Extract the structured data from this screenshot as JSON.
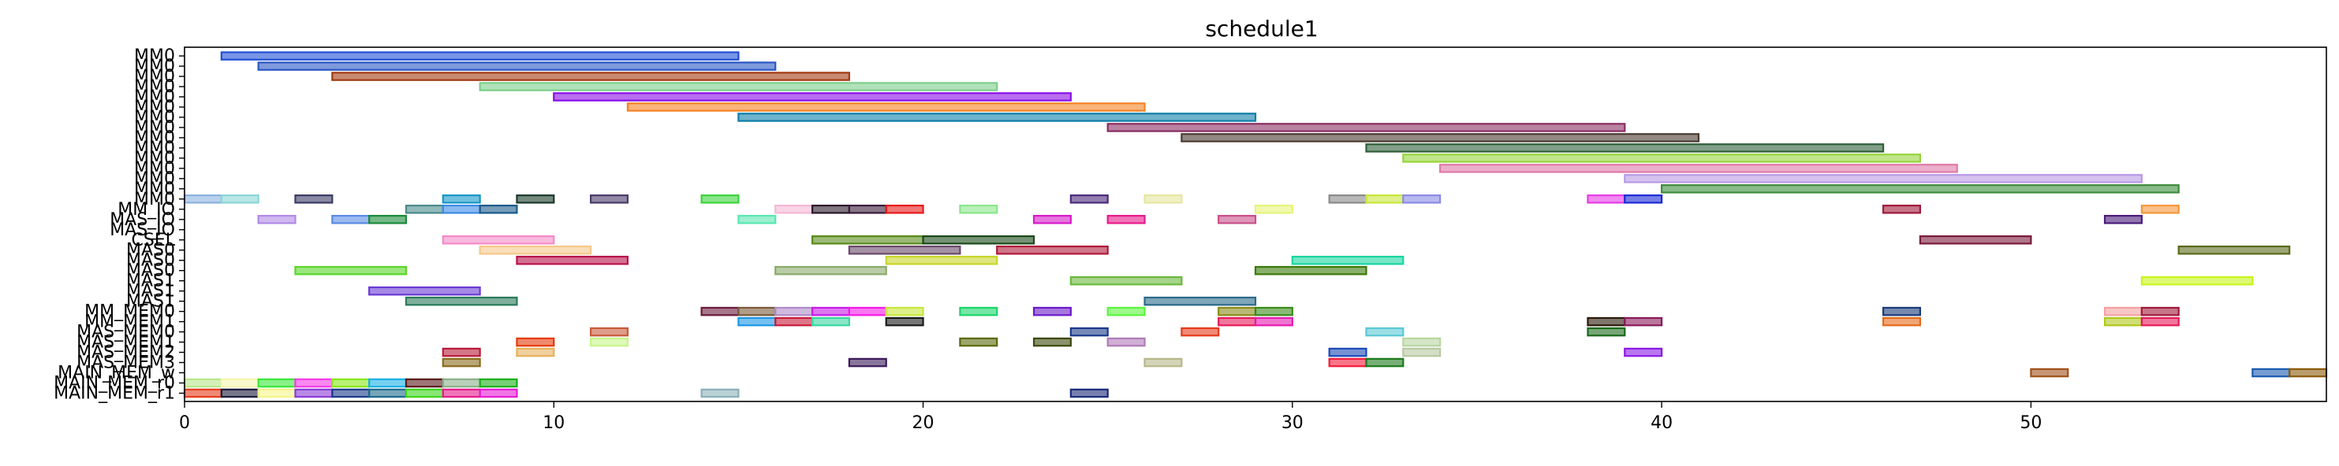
{
  "chart_data": {
    "type": "gantt",
    "title": "schedule1",
    "xlabel": "",
    "ylabel": "",
    "xlim": [
      0,
      58
    ],
    "xticks": [
      0,
      10,
      20,
      30,
      40,
      50
    ],
    "grid": false,
    "rows": [
      "MM0",
      "MM0",
      "MM0",
      "MM0",
      "MM0",
      "MM0",
      "MM0",
      "MM0",
      "MM0",
      "MM0",
      "MM0",
      "MM0",
      "MM0",
      "MM0",
      "MM0",
      "MM_IO",
      "MAS_IO",
      "MAS_IO",
      "CSEL",
      "MAS0",
      "MAS0",
      "MAS0",
      "MAS1",
      "MAS1",
      "MAS1",
      "MM_MEM0",
      "MM_MEM1",
      "MAS_MEM0",
      "MAS_MEM1",
      "MAS_MEM2",
      "MAS_MEM3",
      "MAIN_MEM_w",
      "MAIN_MEM_r0",
      "MAIN_MEM_r1"
    ],
    "tasks": [
      {
        "row": 0,
        "start": 1,
        "end": 15,
        "color": "#1f4fd6"
      },
      {
        "row": 1,
        "start": 2,
        "end": 16,
        "color": "#2a57c4"
      },
      {
        "row": 2,
        "start": 4,
        "end": 18,
        "color": "#a33a12"
      },
      {
        "row": 3,
        "start": 8,
        "end": 22,
        "color": "#7ccf8a"
      },
      {
        "row": 4,
        "start": 10,
        "end": 24,
        "color": "#8a0fe6"
      },
      {
        "row": 5,
        "start": 12,
        "end": 26,
        "color": "#f58225"
      },
      {
        "row": 6,
        "start": 15,
        "end": 29,
        "color": "#0f7ea8"
      },
      {
        "row": 7,
        "start": 25,
        "end": 39,
        "color": "#8a2e63"
      },
      {
        "row": 8,
        "start": 27,
        "end": 41,
        "color": "#4a3a30"
      },
      {
        "row": 9,
        "start": 32,
        "end": 46,
        "color": "#2f5f3a"
      },
      {
        "row": 10,
        "start": 33,
        "end": 47,
        "color": "#96d43c"
      },
      {
        "row": 11,
        "start": 34,
        "end": 48,
        "color": "#e07aa8"
      },
      {
        "row": 12,
        "start": 39,
        "end": 53,
        "color": "#b99ae6"
      },
      {
        "row": 13,
        "start": 40,
        "end": 54,
        "color": "#3c8c3c"
      },
      {
        "row": 14,
        "start": 0,
        "end": 1,
        "color": "#8ab0e0"
      },
      {
        "row": 14,
        "start": 1,
        "end": 2,
        "color": "#8ad6d6"
      },
      {
        "row": 14,
        "start": 3,
        "end": 4,
        "color": "#3a3a66"
      },
      {
        "row": 14,
        "start": 7,
        "end": 8,
        "color": "#1496c8"
      },
      {
        "row": 14,
        "start": 9,
        "end": 10,
        "color": "#1a3a2a"
      },
      {
        "row": 14,
        "start": 11,
        "end": 12,
        "color": "#4a3a6a"
      },
      {
        "row": 14,
        "start": 14,
        "end": 15,
        "color": "#3cd43c"
      },
      {
        "row": 14,
        "start": 24,
        "end": 25,
        "color": "#4a2a7a"
      },
      {
        "row": 14,
        "start": 26,
        "end": 27,
        "color": "#e6e6a0"
      },
      {
        "row": 14,
        "start": 31,
        "end": 32,
        "color": "#8a8a8a"
      },
      {
        "row": 14,
        "start": 32,
        "end": 33,
        "color": "#c8e63c"
      },
      {
        "row": 14,
        "start": 33,
        "end": 34,
        "color": "#8a8ae6"
      },
      {
        "row": 14,
        "start": 38,
        "end": 39,
        "color": "#e63ce6"
      },
      {
        "row": 14,
        "start": 39,
        "end": 40,
        "color": "#1a2ad6"
      },
      {
        "row": 15,
        "start": 6,
        "end": 7,
        "color": "#4a8a8a"
      },
      {
        "row": 15,
        "start": 7,
        "end": 8,
        "color": "#3c8ae6"
      },
      {
        "row": 15,
        "start": 8,
        "end": 9,
        "color": "#1a5a8a"
      },
      {
        "row": 15,
        "start": 16,
        "end": 17,
        "color": "#f5b8d6"
      },
      {
        "row": 15,
        "start": 17,
        "end": 18,
        "color": "#2a1a2a"
      },
      {
        "row": 15,
        "start": 18,
        "end": 19,
        "color": "#3a1a3a"
      },
      {
        "row": 15,
        "start": 19,
        "end": 20,
        "color": "#e61a1a"
      },
      {
        "row": 15,
        "start": 21,
        "end": 22,
        "color": "#8ae68a"
      },
      {
        "row": 15,
        "start": 29,
        "end": 30,
        "color": "#e6f57a"
      },
      {
        "row": 15,
        "start": 46,
        "end": 47,
        "color": "#a01a3a"
      },
      {
        "row": 15,
        "start": 53,
        "end": 54,
        "color": "#f5963c"
      },
      {
        "row": 16,
        "start": 2,
        "end": 3,
        "color": "#b08ae6"
      },
      {
        "row": 16,
        "start": 4,
        "end": 5,
        "color": "#5a8ae6"
      },
      {
        "row": 16,
        "start": 5,
        "end": 6,
        "color": "#1a8a3a"
      },
      {
        "row": 16,
        "start": 15,
        "end": 16,
        "color": "#5ae6b0"
      },
      {
        "row": 16,
        "start": 23,
        "end": 24,
        "color": "#d61ac8"
      },
      {
        "row": 16,
        "start": 25,
        "end": 26,
        "color": "#e61a8a"
      },
      {
        "row": 16,
        "start": 28,
        "end": 29,
        "color": "#c8508a"
      },
      {
        "row": 16,
        "start": 52,
        "end": 53,
        "color": "#4a1a7a"
      },
      {
        "row": 18,
        "start": 7,
        "end": 10,
        "color": "#f58ac8"
      },
      {
        "row": 18,
        "start": 17,
        "end": 20,
        "color": "#5a8a1a"
      },
      {
        "row": 18,
        "start": 20,
        "end": 23,
        "color": "#1a4a1a"
      },
      {
        "row": 18,
        "start": 47,
        "end": 50,
        "color": "#7a1a3a"
      },
      {
        "row": 19,
        "start": 8,
        "end": 11,
        "color": "#f5c88a"
      },
      {
        "row": 19,
        "start": 18,
        "end": 21,
        "color": "#6a4a6a"
      },
      {
        "row": 19,
        "start": 22,
        "end": 25,
        "color": "#b01a3a"
      },
      {
        "row": 19,
        "start": 54,
        "end": 57,
        "color": "#5a6a1a"
      },
      {
        "row": 20,
        "start": 9,
        "end": 12,
        "color": "#b8124a"
      },
      {
        "row": 20,
        "start": 19,
        "end": 22,
        "color": "#c8d62a"
      },
      {
        "row": 20,
        "start": 30,
        "end": 33,
        "color": "#1ad6a0"
      },
      {
        "row": 21,
        "start": 3,
        "end": 6,
        "color": "#5ad62a"
      },
      {
        "row": 21,
        "start": 16,
        "end": 19,
        "color": "#8aaa6a"
      },
      {
        "row": 21,
        "start": 29,
        "end": 32,
        "color": "#3a7a0a"
      },
      {
        "row": 22,
        "start": 24,
        "end": 27,
        "color": "#6ab83c"
      },
      {
        "row": 22,
        "start": 53,
        "end": 56,
        "color": "#c8f51a"
      },
      {
        "row": 23,
        "start": 5,
        "end": 8,
        "color": "#6a3ad6"
      },
      {
        "row": 24,
        "start": 6,
        "end": 9,
        "color": "#2a7a5a"
      },
      {
        "row": 24,
        "start": 26,
        "end": 29,
        "color": "#2a6a8a"
      },
      {
        "row": 25,
        "start": 14,
        "end": 15,
        "color": "#6a1a3a"
      },
      {
        "row": 25,
        "start": 15,
        "end": 16,
        "color": "#7a5a3a"
      },
      {
        "row": 25,
        "start": 16,
        "end": 17,
        "color": "#b08ac8"
      },
      {
        "row": 25,
        "start": 17,
        "end": 18,
        "color": "#c81ae6"
      },
      {
        "row": 25,
        "start": 18,
        "end": 19,
        "color": "#f51ae6"
      },
      {
        "row": 25,
        "start": 19,
        "end": 20,
        "color": "#c8e63c"
      },
      {
        "row": 25,
        "start": 21,
        "end": 22,
        "color": "#1ad66a"
      },
      {
        "row": 25,
        "start": 23,
        "end": 24,
        "color": "#6a1ac8"
      },
      {
        "row": 25,
        "start": 25,
        "end": 26,
        "color": "#5af53c"
      },
      {
        "row": 25,
        "start": 28,
        "end": 29,
        "color": "#8a8a1a"
      },
      {
        "row": 25,
        "start": 29,
        "end": 30,
        "color": "#3a8a1a"
      },
      {
        "row": 25,
        "start": 46,
        "end": 47,
        "color": "#1a3a7a"
      },
      {
        "row": 25,
        "start": 52,
        "end": 53,
        "color": "#f5a0a0"
      },
      {
        "row": 25,
        "start": 53,
        "end": 54,
        "color": "#a01a3a"
      },
      {
        "row": 26,
        "start": 15,
        "end": 16,
        "color": "#1a96e6"
      },
      {
        "row": 26,
        "start": 16,
        "end": 17,
        "color": "#c81a3a"
      },
      {
        "row": 26,
        "start": 17,
        "end": 18,
        "color": "#3ad6a0"
      },
      {
        "row": 26,
        "start": 19,
        "end": 20,
        "color": "#1a1a1a"
      },
      {
        "row": 26,
        "start": 28,
        "end": 29,
        "color": "#e61a5a"
      },
      {
        "row": 26,
        "start": 29,
        "end": 30,
        "color": "#e61ab0"
      },
      {
        "row": 26,
        "start": 38,
        "end": 39,
        "color": "#2a1a0a"
      },
      {
        "row": 26,
        "start": 39,
        "end": 40,
        "color": "#8a1a5a"
      },
      {
        "row": 26,
        "start": 46,
        "end": 47,
        "color": "#e66a1a"
      },
      {
        "row": 26,
        "start": 52,
        "end": 53,
        "color": "#b0c81a"
      },
      {
        "row": 26,
        "start": 53,
        "end": 54,
        "color": "#e61a5a"
      },
      {
        "row": 27,
        "start": 11,
        "end": 12,
        "color": "#c85a3a"
      },
      {
        "row": 27,
        "start": 24,
        "end": 25,
        "color": "#1a3a8a"
      },
      {
        "row": 27,
        "start": 27,
        "end": 28,
        "color": "#e63a1a"
      },
      {
        "row": 27,
        "start": 32,
        "end": 33,
        "color": "#5ac8d6"
      },
      {
        "row": 27,
        "start": 38,
        "end": 39,
        "color": "#1a6a1a"
      },
      {
        "row": 28,
        "start": 9,
        "end": 10,
        "color": "#e63a0a"
      },
      {
        "row": 28,
        "start": 11,
        "end": 12,
        "color": "#c8f58a"
      },
      {
        "row": 28,
        "start": 21,
        "end": 22,
        "color": "#5a6a0a"
      },
      {
        "row": 28,
        "start": 23,
        "end": 24,
        "color": "#3a4a0a"
      },
      {
        "row": 28,
        "start": 25,
        "end": 26,
        "color": "#b07ab8"
      },
      {
        "row": 28,
        "start": 33,
        "end": 34,
        "color": "#b8d6a0"
      },
      {
        "row": 29,
        "start": 7,
        "end": 8,
        "color": "#b81a3a"
      },
      {
        "row": 29,
        "start": 9,
        "end": 10,
        "color": "#e6b05a"
      },
      {
        "row": 29,
        "start": 31,
        "end": 32,
        "color": "#1a4ab8"
      },
      {
        "row": 29,
        "start": 33,
        "end": 34,
        "color": "#b8c8a0"
      },
      {
        "row": 29,
        "start": 39,
        "end": 40,
        "color": "#8a1ae6"
      },
      {
        "row": 30,
        "start": 7,
        "end": 8,
        "color": "#8a6a1a"
      },
      {
        "row": 30,
        "start": 18,
        "end": 19,
        "color": "#3a1a5a"
      },
      {
        "row": 30,
        "start": 26,
        "end": 27,
        "color": "#b8b88a"
      },
      {
        "row": 30,
        "start": 31,
        "end": 32,
        "color": "#f51a3a"
      },
      {
        "row": 30,
        "start": 32,
        "end": 33,
        "color": "#1a7a1a"
      },
      {
        "row": 31,
        "start": 50,
        "end": 51,
        "color": "#a0501a"
      },
      {
        "row": 31,
        "start": 56,
        "end": 57,
        "color": "#1a5ab0"
      },
      {
        "row": 31,
        "start": 57,
        "end": 58,
        "color": "#8a5a0a"
      },
      {
        "row": 32,
        "start": 0,
        "end": 1,
        "color": "#b8e68a"
      },
      {
        "row": 32,
        "start": 1,
        "end": 2,
        "color": "#f5f5b0"
      },
      {
        "row": 32,
        "start": 2,
        "end": 3,
        "color": "#3ae63a"
      },
      {
        "row": 32,
        "start": 3,
        "end": 4,
        "color": "#f53ae6"
      },
      {
        "row": 32,
        "start": 4,
        "end": 5,
        "color": "#8ae61a"
      },
      {
        "row": 32,
        "start": 5,
        "end": 6,
        "color": "#1ab0e6"
      },
      {
        "row": 32,
        "start": 6,
        "end": 7,
        "color": "#5a1a1a"
      },
      {
        "row": 32,
        "start": 7,
        "end": 8,
        "color": "#8ab08a"
      },
      {
        "row": 32,
        "start": 8,
        "end": 9,
        "color": "#1ab01a"
      },
      {
        "row": 33,
        "start": 0,
        "end": 1,
        "color": "#e63a1a"
      },
      {
        "row": 33,
        "start": 1,
        "end": 2,
        "color": "#1a1a3a"
      },
      {
        "row": 33,
        "start": 2,
        "end": 3,
        "color": "#f5f58a"
      },
      {
        "row": 33,
        "start": 3,
        "end": 4,
        "color": "#8a3ad6"
      },
      {
        "row": 33,
        "start": 4,
        "end": 5,
        "color": "#1a3a8a"
      },
      {
        "row": 33,
        "start": 5,
        "end": 6,
        "color": "#1a6a8a"
      },
      {
        "row": 33,
        "start": 6,
        "end": 7,
        "color": "#3ad61a"
      },
      {
        "row": 33,
        "start": 7,
        "end": 8,
        "color": "#e61a8a"
      },
      {
        "row": 33,
        "start": 8,
        "end": 9,
        "color": "#e61ad6"
      },
      {
        "row": 33,
        "start": 14,
        "end": 15,
        "color": "#8ab0b8"
      },
      {
        "row": 33,
        "start": 24,
        "end": 25,
        "color": "#1a2a7a"
      }
    ]
  }
}
